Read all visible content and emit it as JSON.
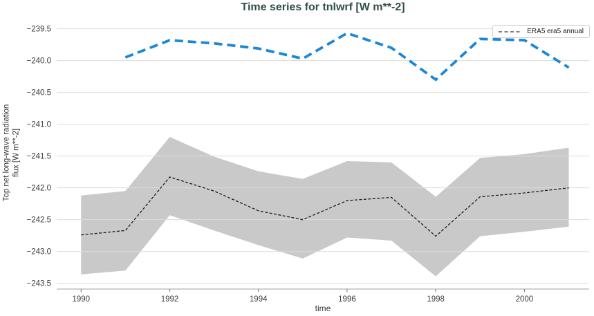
{
  "chart_data": {
    "type": "line",
    "title": "Time series for tnlwrf [W m**-2]",
    "xlabel": "time",
    "ylabel_lines": [
      "Top net long-wave radiation",
      "flux [W m**-2]"
    ],
    "x_ticks": [
      "1990",
      "1992",
      "1994",
      "1996",
      "1998",
      "2000"
    ],
    "y_ticks": [
      "−239.5",
      "−240.0",
      "−240.5",
      "−241.0",
      "−241.5",
      "−242.0",
      "−242.5",
      "−243.0",
      "−243.5"
    ],
    "xlim": [
      1989.45,
      2001.46
    ],
    "ylim": [
      -243.59,
      -239.32
    ],
    "grid": "horizontal-only",
    "colors": {
      "title": "#30504c",
      "grid": "#dcdcdc",
      "spine": "#b3b3b3",
      "tick_mark": "#8a8a8a",
      "tick_text": "#3a3a3a",
      "band": "#c9c9c9",
      "era5_line": "#1a1a1a",
      "blue_line": "#1c87d6"
    },
    "legend": {
      "position": "top-right",
      "entries": [
        {
          "label": "ERA5 era5 annual",
          "style": "dashed",
          "color": "#333333"
        }
      ]
    },
    "series": [
      {
        "legend_label": "ERA5 era5 annual",
        "style": "dashed",
        "color": "#1a1a1a",
        "width": 1.3,
        "dash": [
          4,
          2.5
        ],
        "x": [
          1990,
          1991,
          1992,
          1993,
          1994,
          1995,
          1996,
          1997,
          1998,
          1999,
          2000,
          2001
        ],
        "y": [
          -242.74,
          -242.67,
          -241.83,
          -242.05,
          -242.36,
          -242.5,
          -242.2,
          -242.15,
          -242.76,
          -242.14,
          -242.08,
          -242.0
        ],
        "band": {
          "color": "#c9c9c9",
          "upper": [
            -242.12,
            -242.05,
            -241.2,
            -241.51,
            -241.74,
            -241.86,
            -241.58,
            -241.6,
            -242.14,
            -241.53,
            -241.47,
            -241.37
          ],
          "lower": [
            -243.36,
            -243.3,
            -242.43,
            -242.67,
            -242.9,
            -243.11,
            -242.78,
            -242.83,
            -243.39,
            -242.76,
            -242.69,
            -242.61
          ]
        }
      },
      {
        "legend_label": "",
        "style": "dashed",
        "color": "#1c87d6",
        "width": 3.8,
        "dash": [
          12,
          7
        ],
        "x": [
          1991,
          1992,
          1993,
          1994,
          1995,
          1996,
          1997,
          1998,
          1999,
          2000,
          2001
        ],
        "y": [
          -239.95,
          -239.68,
          -239.73,
          -239.81,
          -239.97,
          -239.57,
          -239.8,
          -240.3,
          -239.66,
          -239.68,
          -240.11
        ]
      }
    ]
  }
}
